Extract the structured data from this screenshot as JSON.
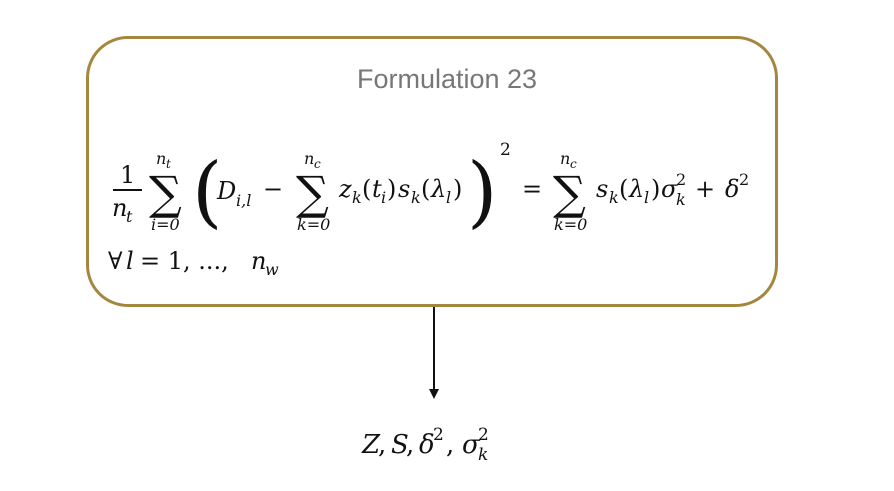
{
  "box": {
    "title": "Formulation 23",
    "border_color": "#a4873f"
  },
  "equation": {
    "frac_num": "1",
    "frac_den_n": "n",
    "frac_den_sub": "t",
    "sum1_top_n": "n",
    "sum1_top_sub": "t",
    "sum1_bottom": "i=0",
    "d": "D",
    "d_sub": "i,l",
    "minus": "−",
    "sum2_top_n": "n",
    "sum2_top_sub": "c",
    "sum2_bottom": "k=0",
    "z": "z",
    "z_sub": "k",
    "z_arg_open": "(",
    "z_arg_t": "t",
    "z_arg_sub": "i",
    "z_arg_close": ")",
    "s": "s",
    "s_sub": "k",
    "s_arg_open": "(",
    "s_arg_lambda": "λ",
    "s_arg_sub": "l",
    "s_arg_close": ")",
    "square": "2",
    "equals": "=",
    "sum3_top_n": "n",
    "sum3_top_sub": "c",
    "sum3_bottom": "k=0",
    "rhs_s": "s",
    "rhs_s_sub": "k",
    "rhs_lambda_open": "(",
    "rhs_lambda": "λ",
    "rhs_lambda_sub": "l",
    "rhs_lambda_close": ")",
    "sigma": "σ",
    "sigma_sup": "2",
    "sigma_sub": "k",
    "plus": "+",
    "delta": "δ",
    "delta_sup": "2",
    "forall": "∀",
    "forall_l": "l",
    "forall_rest": "= 1, ..., ",
    "forall_n": "n",
    "forall_n_sub": "w"
  },
  "output": {
    "z": "Z",
    "comma1": ",",
    "s": "S",
    "comma2": ",",
    "delta": "δ",
    "delta_sup": "2",
    "comma3": ",",
    "sigma": "σ",
    "sigma_sup": "2",
    "sigma_sub": "k"
  }
}
